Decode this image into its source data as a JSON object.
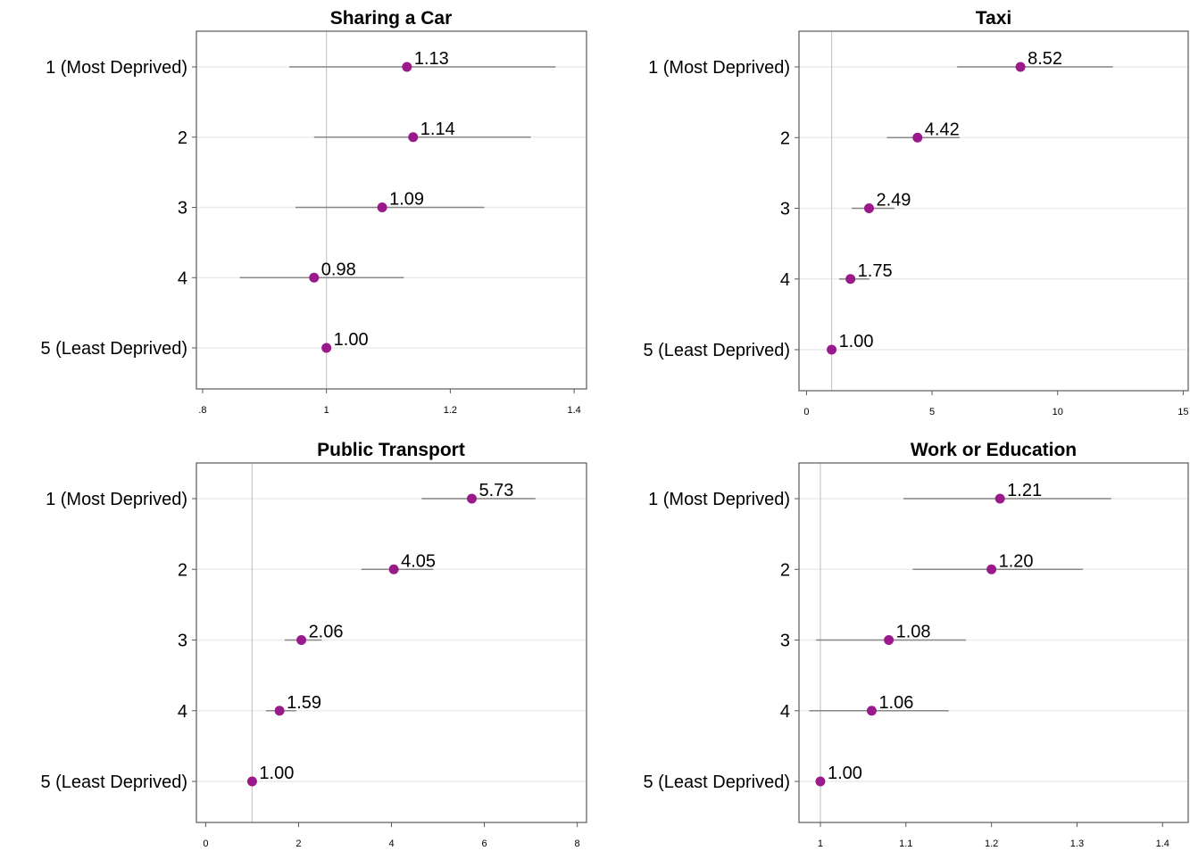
{
  "colors": {
    "point": "#9a1a8c",
    "ci_line": "#888888",
    "ref_line": "#c8c8c8",
    "grid": "#ececec",
    "frame": "#595959"
  },
  "chart_data": [
    {
      "type": "scatter",
      "title": "Sharing a Car",
      "categories": [
        "1 (Most Deprived)",
        "2",
        "3",
        "4",
        "5 (Least Deprived)"
      ],
      "values": [
        1.13,
        1.14,
        1.09,
        0.98,
        1.0
      ],
      "value_labels": [
        "1.13",
        "1.14",
        "1.09",
        "0.98",
        "1.00"
      ],
      "ci_low": [
        0.94,
        0.98,
        0.95,
        0.86,
        null
      ],
      "ci_high": [
        1.37,
        1.33,
        1.255,
        1.125,
        null
      ],
      "reference": 1,
      "xlim": [
        0.79,
        1.42
      ],
      "ticks": [
        0.8,
        1,
        1.2,
        1.4
      ],
      "tick_labels": [
        ".8",
        "1",
        "1.2",
        "1.4"
      ],
      "grid": "horizontal"
    },
    {
      "type": "scatter",
      "title": "Taxi",
      "categories": [
        "1 (Most Deprived)",
        "2",
        "3",
        "4",
        "5 (Least Deprived)"
      ],
      "values": [
        8.52,
        4.42,
        2.49,
        1.75,
        1.0
      ],
      "value_labels": [
        "8.52",
        "4.42",
        "2.49",
        "1.75",
        "1.00"
      ],
      "ci_low": [
        6.0,
        3.2,
        1.8,
        1.3,
        null
      ],
      "ci_high": [
        12.2,
        6.1,
        3.5,
        2.5,
        null
      ],
      "reference": 1,
      "xlim": [
        -0.3,
        15.2
      ],
      "ticks": [
        0,
        5,
        10,
        15
      ],
      "tick_labels": [
        "0",
        "5",
        "10",
        "15"
      ],
      "grid": "horizontal"
    },
    {
      "type": "scatter",
      "title": "Public Transport",
      "categories": [
        "1 (Most Deprived)",
        "2",
        "3",
        "4",
        "5 (Least Deprived)"
      ],
      "values": [
        5.73,
        4.05,
        2.06,
        1.59,
        1.0
      ],
      "value_labels": [
        "5.73",
        "4.05",
        "2.06",
        "1.59",
        "1.00"
      ],
      "ci_low": [
        4.65,
        3.35,
        1.7,
        1.3,
        null
      ],
      "ci_high": [
        7.1,
        4.9,
        2.5,
        1.95,
        null
      ],
      "reference": 1,
      "xlim": [
        -0.2,
        8.2
      ],
      "ticks": [
        0,
        2,
        4,
        6,
        8
      ],
      "tick_labels": [
        "0",
        "2",
        "4",
        "6",
        "8"
      ],
      "grid": "horizontal"
    },
    {
      "type": "scatter",
      "title": "Work or Education",
      "categories": [
        "1 (Most Deprived)",
        "2",
        "3",
        "4",
        "5 (Least Deprived)"
      ],
      "values": [
        1.21,
        1.2,
        1.08,
        1.06,
        1.0
      ],
      "value_labels": [
        "1.21",
        "1.20",
        "1.08",
        "1.06",
        "1.00"
      ],
      "ci_low": [
        1.097,
        1.108,
        0.995,
        0.987,
        null
      ],
      "ci_high": [
        1.34,
        1.307,
        1.17,
        1.15,
        null
      ],
      "reference": 1,
      "xlim": [
        0.975,
        1.43
      ],
      "ticks": [
        1,
        1.1,
        1.2,
        1.3,
        1.4
      ],
      "tick_labels": [
        "1",
        "1.1",
        "1.2",
        "1.3",
        "1.4"
      ],
      "grid": "horizontal"
    }
  ]
}
